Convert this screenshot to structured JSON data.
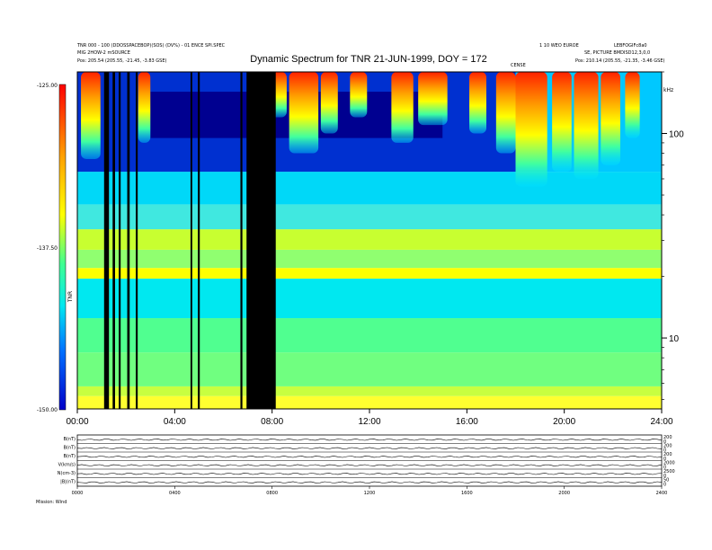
{
  "header": {
    "left_line1": "TNR 000 - 100 (DDOSSPACEBOP)(SOS) (DV%) - 01 ENCE SPI.SPEC",
    "left_line2": "MIG 2HOW-2 mSOURCE",
    "left_line3": "Pos: 205.54 (205.55, -21.45, -3.83 GSE)",
    "right_line1": "1 10 WEO EUROE",
    "right_line2": "LEBFOGIFc8a0",
    "right_line3": "SE, PICTURE BMDISD12,3,0,0",
    "right_line4": "Pos: 210.14 (205.55, -21.35, -3.46 GSE)",
    "event_marker": "CENSE"
  },
  "chart_data": {
    "type": "heatmap",
    "title": "Dynamic Spectrum for TNR 21-JUN-1999, DOY = 172",
    "xlabel": "",
    "ylabel": "",
    "x_range_hours": [
      0,
      24
    ],
    "x_ticks": [
      "00:00",
      "04:00",
      "08:00",
      "12:00",
      "16:00",
      "20:00",
      "24:00"
    ],
    "y_scale": "log",
    "y_range_khz": [
      4.5,
      200
    ],
    "y_ticks": [
      {
        "value": 10,
        "label": "10"
      },
      {
        "value": 100,
        "label": "100"
      }
    ],
    "y_unit_label": "kHz",
    "colorbar": {
      "ticks": [
        "-125.00",
        "-137.50",
        "-150.00"
      ],
      "range": [
        -150,
        -125
      ],
      "side_label": "TNR",
      "colors": [
        "#0000c8",
        "#00aaff",
        "#00e8f0",
        "#40ff90",
        "#ffff00",
        "#ffa000",
        "#ff0000"
      ]
    },
    "data_gaps_hours": [
      [
        1.1,
        1.3
      ],
      [
        1.45,
        1.55
      ],
      [
        1.7,
        1.78
      ],
      [
        2.05,
        2.15
      ],
      [
        2.4,
        2.48
      ],
      [
        4.65,
        4.72
      ],
      [
        4.95,
        5.03
      ],
      [
        6.7,
        6.78
      ],
      [
        6.95,
        7.05
      ],
      [
        7.0,
        8.15
      ]
    ],
    "bursts": [
      {
        "start": 0.15,
        "end": 0.95,
        "f_low": 75
      },
      {
        "start": 2.5,
        "end": 3.0,
        "f_low": 90
      },
      {
        "start": 7.7,
        "end": 8.6,
        "f_low": 120
      },
      {
        "start": 8.7,
        "end": 9.9,
        "f_low": 80
      },
      {
        "start": 10.0,
        "end": 10.7,
        "f_low": 100
      },
      {
        "start": 11.2,
        "end": 11.9,
        "f_low": 120
      },
      {
        "start": 12.9,
        "end": 13.8,
        "f_low": 90
      },
      {
        "start": 14.0,
        "end": 15.2,
        "f_low": 110
      },
      {
        "start": 16.1,
        "end": 16.8,
        "f_low": 100
      },
      {
        "start": 17.2,
        "end": 18.0,
        "f_low": 80
      },
      {
        "start": 18.0,
        "end": 19.3,
        "f_low": 55
      },
      {
        "start": 19.5,
        "end": 20.3,
        "f_low": 65
      },
      {
        "start": 20.4,
        "end": 21.4,
        "f_low": 60
      },
      {
        "start": 21.5,
        "end": 22.3,
        "f_low": 70
      },
      {
        "start": 22.5,
        "end": 23.1,
        "f_low": 95
      }
    ]
  },
  "lower_panels": {
    "x_ticks": [
      "0000",
      "0400",
      "0800",
      "1200",
      "1600",
      "2000",
      "2400"
    ],
    "footer_label": "Mission: Wind",
    "panels": [
      {
        "label": "B(nT)",
        "range": [
          "200",
          "0"
        ]
      },
      {
        "label": "B(nT)",
        "range": [
          "200",
          "0"
        ]
      },
      {
        "label": "B(nT)",
        "range": [
          "200",
          "0"
        ]
      },
      {
        "label": "V(km/s)",
        "range": [
          "2000",
          "0"
        ]
      },
      {
        "label": "N(cm-3)",
        "range": [
          "2500",
          "0"
        ]
      },
      {
        "label": "|B|(nT)",
        "range": [
          "50",
          "0"
        ]
      }
    ]
  }
}
